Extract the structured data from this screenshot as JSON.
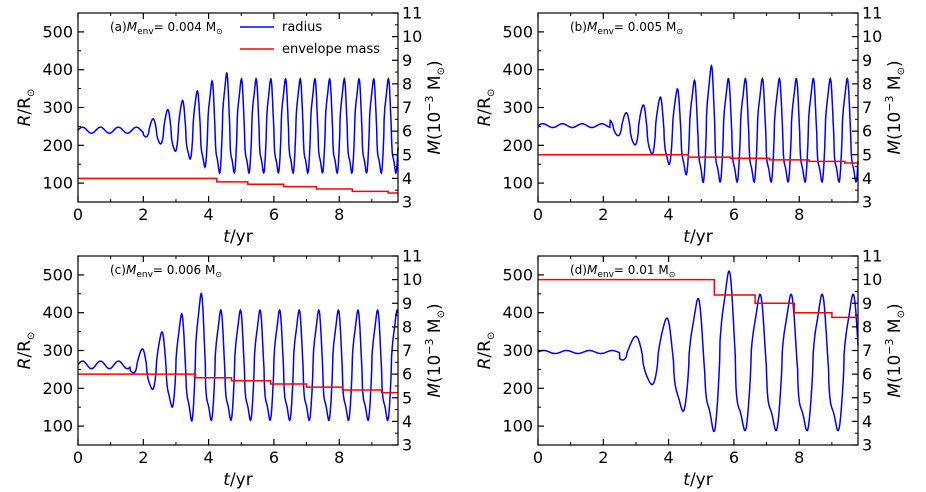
{
  "chart_data": [
    {
      "type": "line",
      "panel_label": "(a)",
      "annotation": "= 0.004 M",
      "xlabel_var": "t",
      "xlabel_unit": "/yr",
      "ylabel_left_var": "R",
      "ylabel_left_unit": "/R",
      "ylabel_right_var": "M",
      "ylabel_right_unit": "(10",
      "ylabel_right_exp": "−3",
      "ylabel_right_tail": " M",
      "xlim": [
        0,
        9.8
      ],
      "ylim_left": [
        50,
        550
      ],
      "ylim_right": [
        3,
        11
      ],
      "x_ticks": [
        0,
        2,
        4,
        6,
        8
      ],
      "y_left_ticks": [
        100,
        200,
        300,
        400,
        500
      ],
      "y_right_ticks": [
        3,
        4,
        5,
        6,
        7,
        8,
        9,
        10,
        11
      ],
      "legend": [
        "radius",
        "envelope mass"
      ],
      "series": [
        {
          "name": "radius",
          "color": "#0000ff",
          "axis": "left",
          "base": 240,
          "calm_end": 2.0,
          "calm_amp": 8,
          "calm_period": 0.55,
          "ramp_start": 2.0,
          "ramp_end": 4.2,
          "period": 0.45,
          "peak": 370,
          "trough": 135,
          "first_peak": 385
        },
        {
          "name": "envelope mass",
          "color": "#ff0000",
          "axis": "right",
          "steps": [
            [
              0,
              4.0
            ],
            [
              4.25,
              3.85
            ],
            [
              5.2,
              3.75
            ],
            [
              6.3,
              3.65
            ],
            [
              7.3,
              3.55
            ],
            [
              8.4,
              3.45
            ],
            [
              9.5,
              3.38
            ],
            [
              9.8,
              3.38
            ]
          ]
        }
      ]
    },
    {
      "type": "line",
      "panel_label": "(b)",
      "annotation": "= 0.005 M",
      "xlabel_var": "t",
      "xlabel_unit": "/yr",
      "ylabel_left_var": "R",
      "ylabel_left_unit": "/R",
      "ylabel_right_var": "M",
      "ylabel_right_unit": "(10",
      "ylabel_right_exp": "−3",
      "ylabel_right_tail": " M",
      "xlim": [
        0,
        9.8
      ],
      "ylim_left": [
        50,
        550
      ],
      "ylim_right": [
        3,
        11
      ],
      "x_ticks": [
        0,
        2,
        4,
        6,
        8
      ],
      "y_left_ticks": [
        100,
        200,
        300,
        400,
        500
      ],
      "y_right_ticks": [
        3,
        4,
        5,
        6,
        7,
        8,
        9,
        10,
        11
      ],
      "series": [
        {
          "name": "radius",
          "color": "#0000ff",
          "axis": "left",
          "base": 252,
          "calm_end": 2.2,
          "calm_amp": 5,
          "calm_period": 0.6,
          "ramp_start": 2.2,
          "ramp_end": 4.9,
          "period": 0.52,
          "peak": 370,
          "trough": 112,
          "first_peak": 403
        },
        {
          "name": "envelope mass",
          "color": "#ff0000",
          "axis": "right",
          "steps": [
            [
              0,
              5.0
            ],
            [
              4.6,
              4.9
            ],
            [
              5.9,
              4.85
            ],
            [
              7.1,
              4.78
            ],
            [
              8.3,
              4.72
            ],
            [
              9.4,
              4.65
            ],
            [
              9.8,
              4.65
            ]
          ]
        }
      ]
    },
    {
      "type": "line",
      "panel_label": "(c)",
      "annotation": "= 0.006 M",
      "xlabel_var": "t",
      "xlabel_unit": "/yr",
      "ylabel_left_var": "R",
      "ylabel_left_unit": "/R",
      "ylabel_right_var": "M",
      "ylabel_right_unit": "(10",
      "ylabel_right_exp": "−3",
      "ylabel_right_tail": " M",
      "xlim": [
        0,
        9.8
      ],
      "ylim_left": [
        50,
        550
      ],
      "ylim_right": [
        3,
        11
      ],
      "x_ticks": [
        0,
        2,
        4,
        6,
        8
      ],
      "y_left_ticks": [
        100,
        200,
        300,
        400,
        500
      ],
      "y_right_ticks": [
        3,
        4,
        5,
        6,
        7,
        8,
        9,
        10,
        11
      ],
      "series": [
        {
          "name": "radius",
          "color": "#0000ff",
          "axis": "left",
          "base": 262,
          "calm_end": 1.6,
          "calm_amp": 10,
          "calm_period": 0.55,
          "ramp_start": 1.6,
          "ramp_end": 3.3,
          "period": 0.6,
          "peak": 400,
          "trough": 125,
          "first_peak": 443
        },
        {
          "name": "envelope mass",
          "color": "#ff0000",
          "axis": "right",
          "steps": [
            [
              0,
              6.0
            ],
            [
              3.6,
              5.85
            ],
            [
              4.7,
              5.72
            ],
            [
              5.9,
              5.58
            ],
            [
              7.0,
              5.45
            ],
            [
              8.1,
              5.33
            ],
            [
              9.3,
              5.22
            ],
            [
              9.8,
              5.22
            ]
          ]
        }
      ]
    },
    {
      "type": "line",
      "panel_label": "(d)",
      "annotation": "= 0.01 M",
      "xlabel_var": "t",
      "xlabel_unit": "/yr",
      "ylabel_left_var": "R",
      "ylabel_left_unit": "/R",
      "ylabel_right_var": "M",
      "ylabel_right_unit": "(10",
      "ylabel_right_exp": "−3",
      "ylabel_right_tail": " M",
      "xlim": [
        0,
        9.8
      ],
      "ylim_left": [
        50,
        550
      ],
      "ylim_right": [
        3,
        11
      ],
      "x_ticks": [
        0,
        2,
        4,
        6,
        8
      ],
      "y_left_ticks": [
        100,
        200,
        300,
        400,
        500
      ],
      "y_right_ticks": [
        3,
        4,
        5,
        6,
        7,
        8,
        9,
        10,
        11
      ],
      "series": [
        {
          "name": "radius",
          "color": "#0000ff",
          "axis": "left",
          "base": 296,
          "calm_end": 2.5,
          "calm_amp": 4,
          "calm_period": 0.7,
          "ramp_start": 2.5,
          "ramp_end": 5.1,
          "period": 0.95,
          "peak": 440,
          "trough": 100,
          "first_peak": 500
        },
        {
          "name": "envelope mass",
          "color": "#ff0000",
          "axis": "right",
          "steps": [
            [
              0,
              10.0
            ],
            [
              5.4,
              9.35
            ],
            [
              6.65,
              9.0
            ],
            [
              7.85,
              8.6
            ],
            [
              9.0,
              8.4
            ],
            [
              9.8,
              8.4
            ]
          ]
        }
      ]
    }
  ]
}
